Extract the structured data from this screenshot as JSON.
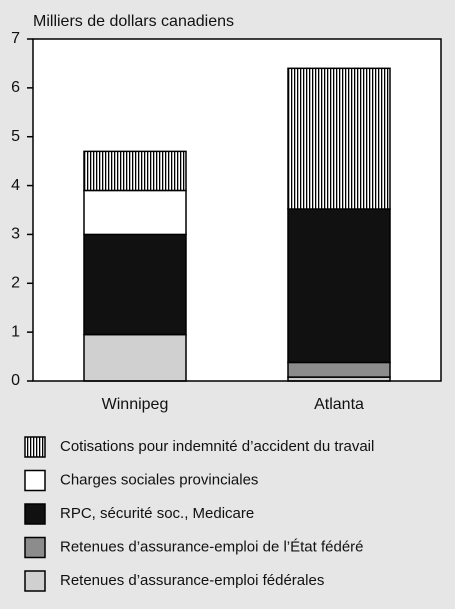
{
  "chart_data": {
    "type": "stacked-bar",
    "ylabel": "Milliers de dollars canadiens",
    "categories": [
      "Winnipeg",
      "Atlanta"
    ],
    "series": [
      {
        "name": "Cotisations pour indemnité d’accident du travail",
        "color": "#000000",
        "pattern": "vertical-lines",
        "values": [
          0.8,
          2.88
        ]
      },
      {
        "name": "Charges sociales provinciales",
        "color": "#ffffff",
        "values": [
          0.9,
          0
        ]
      },
      {
        "name": "RPC, sécurité soc., Medicare",
        "color": "#111111",
        "values": [
          2.05,
          3.14
        ]
      },
      {
        "name": "Retenues d’assurance-emploi de l’État fédéré",
        "color": "#8c8c8c",
        "values": [
          0,
          0.3
        ]
      },
      {
        "name": "Retenues d’assurance-emploi fédérales",
        "color": "#d0d0d0",
        "values": [
          0.95,
          0.08
        ]
      }
    ],
    "ylim": [
      0,
      7
    ],
    "yticks": [
      0,
      1,
      2,
      3,
      4,
      5,
      6,
      7
    ]
  }
}
